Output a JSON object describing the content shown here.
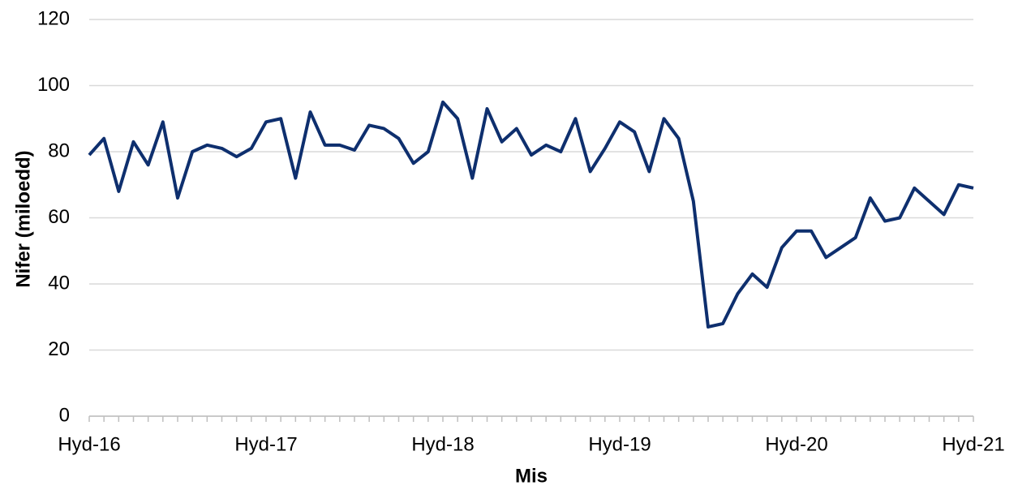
{
  "chart_data": {
    "type": "line",
    "xlabel": "Mis",
    "ylabel": "Nifer (miloedd)",
    "categories": [
      "Hyd-16",
      null,
      null,
      null,
      null,
      null,
      null,
      null,
      null,
      null,
      null,
      null,
      "Hyd-17",
      null,
      null,
      null,
      null,
      null,
      null,
      null,
      null,
      null,
      null,
      null,
      "Hyd-18",
      null,
      null,
      null,
      null,
      null,
      null,
      null,
      null,
      null,
      null,
      null,
      "Hyd-19",
      null,
      null,
      null,
      null,
      null,
      null,
      null,
      null,
      null,
      null,
      null,
      "Hyd-20",
      null,
      null,
      null,
      null,
      null,
      null,
      null,
      null,
      null,
      null,
      null,
      "Hyd-21"
    ],
    "values": [
      79,
      84,
      68,
      83,
      76,
      89,
      66,
      80,
      82,
      81,
      78.5,
      81,
      89,
      90,
      72,
      92,
      82,
      82,
      80.5,
      88,
      87,
      84,
      76.5,
      80,
      95,
      90,
      72,
      93,
      83,
      87,
      79,
      82,
      80,
      90,
      74,
      81,
      89,
      86,
      74,
      90,
      84,
      65,
      27,
      28,
      37,
      43,
      39,
      51,
      56,
      56,
      48,
      51,
      54,
      66,
      59,
      60,
      69,
      65,
      61,
      70,
      69
    ],
    "color": "#0e2f6e",
    "ylim": [
      0,
      120
    ],
    "yticks": [
      0,
      20,
      40,
      60,
      80,
      100,
      120
    ],
    "grid": true
  }
}
